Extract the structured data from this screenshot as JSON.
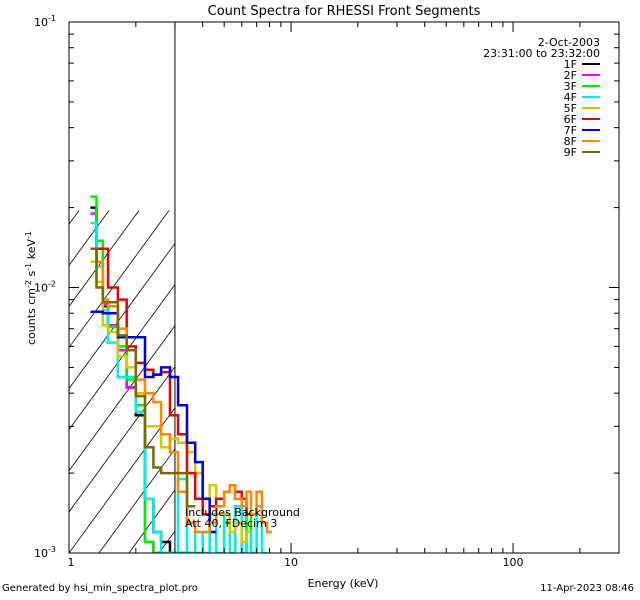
{
  "chart_data": {
    "type": "line",
    "title": "Count Spectra for RHESSI Front Segments",
    "xlabel": "Energy (keV)",
    "ylabel_parts": [
      "counts cm",
      "-2",
      " s",
      "-1",
      " keV",
      "-1"
    ],
    "xscale": "log",
    "yscale": "log",
    "xlim": [
      1,
      300
    ],
    "ylim": [
      0.001,
      0.1
    ],
    "x_ticks": [
      {
        "v": 10,
        "label": "10"
      },
      {
        "v": 100,
        "label": "100"
      }
    ],
    "x_tick_label_1": "1",
    "y_ticks": [
      {
        "v": 0.1,
        "base": "10",
        "exp": "-1"
      },
      {
        "v": 0.01,
        "base": "10",
        "exp": "-2"
      },
      {
        "v": 0.001,
        "base": "10",
        "exp": "-3"
      }
    ],
    "date": "2-Oct-2003",
    "time_range": "23:31:00 to 23:32:00",
    "annotation": [
      "Includes Background",
      "Att 40, FDecim 3"
    ],
    "shaded_region_keV": [
      1,
      3
    ],
    "series": [
      {
        "name": "1F",
        "color": "#000000",
        "edges": [
          1.25,
          1.33,
          1.42,
          1.5,
          1.66,
          1.82,
          2.0,
          2.2,
          2.4,
          2.6,
          2.85,
          3.1,
          3.4,
          3.7
        ],
        "values": [
          0.02,
          0.0125,
          0.0085,
          0.0072,
          0.0058,
          0.0042,
          0.0033,
          0.0016,
          0.0012,
          0.0011,
          0.001,
          0.001,
          0.001
        ]
      },
      {
        "name": "2F",
        "color": "#ff00ff",
        "edges": [
          1.25,
          1.33,
          1.42,
          1.5,
          1.66,
          1.82,
          2.0,
          2.2,
          2.4,
          2.6,
          2.85,
          3.1
        ],
        "values": [
          0.019,
          0.0125,
          0.0086,
          0.0072,
          0.0058,
          0.0042,
          0.0034,
          0.0011,
          0.001,
          0.001,
          0.001
        ]
      },
      {
        "name": "3F",
        "color": "#00ee00",
        "edges": [
          1.25,
          1.33,
          1.42,
          1.5,
          1.66,
          1.82,
          2.0,
          2.2,
          2.4,
          2.6,
          2.85,
          3.1,
          3.4,
          3.7,
          4.0,
          4.3,
          4.6,
          5.0,
          5.3,
          5.6,
          6.0,
          6.3,
          6.6,
          7.0
        ],
        "values": [
          0.022,
          0.015,
          0.0088,
          0.0071,
          0.006,
          0.0045,
          0.0036,
          0.0011,
          0.001,
          0.001,
          0.001,
          0.001,
          0.001,
          0.001,
          0.001,
          0.0012,
          0.001,
          0.0013,
          0.001,
          0.0015,
          0.001,
          0.0014,
          0.001
        ]
      },
      {
        "name": "4F",
        "color": "#00eeee",
        "edges": [
          1.25,
          1.33,
          1.42,
          1.5,
          1.66,
          1.82,
          2.0,
          2.2,
          2.4,
          2.6,
          2.85,
          3.1,
          3.4,
          3.7,
          4.0,
          4.3,
          4.6,
          5.0,
          5.3,
          5.6,
          6.0,
          6.3,
          6.6,
          7.0,
          7.4,
          7.8
        ],
        "values": [
          0.0175,
          0.012,
          0.0082,
          0.0062,
          0.0046,
          0.0046,
          0.0034,
          0.0016,
          0.0012,
          0.001,
          0.001,
          0.0019,
          0.001,
          0.0012,
          0.001,
          0.0014,
          0.001,
          0.0014,
          0.001,
          0.0015,
          0.001,
          0.0012,
          0.001,
          0.0015,
          0.001
        ]
      },
      {
        "name": "5F",
        "color": "#cccc00",
        "edges": [
          1.25,
          1.33,
          1.42,
          1.5,
          1.66,
          1.82,
          2.0,
          2.2,
          2.4,
          2.6,
          2.85,
          3.1,
          3.4,
          3.7,
          4.0,
          4.3,
          4.6,
          5.0,
          5.3,
          5.6,
          6.0,
          6.3,
          6.6
        ],
        "values": [
          0.0125,
          0.0105,
          0.0072,
          0.0068,
          0.0055,
          0.005,
          0.004,
          0.003,
          0.003,
          0.0025,
          0.0027,
          0.0026,
          0.0024,
          0.002,
          0.0016,
          0.0018,
          0.0014,
          0.0014,
          0.0012,
          0.0013,
          0.0011,
          0.0012
        ]
      },
      {
        "name": "6F",
        "color": "#ee0000",
        "edges": [
          1.25,
          1.33,
          1.42,
          1.5,
          1.66,
          1.82,
          2.0,
          2.2,
          2.4,
          2.6,
          2.85,
          3.1,
          3.4,
          3.7,
          4.0,
          4.3,
          4.6,
          5.0,
          5.3,
          5.6,
          6.0,
          6.3,
          6.6
        ],
        "values": [
          0.014,
          0.014,
          0.014,
          0.01,
          0.009,
          0.006,
          0.0052,
          0.0049,
          0.0047,
          0.0048,
          0.0033,
          0.0028,
          0.002,
          0.0016,
          0.0014,
          0.0015,
          0.0016,
          0.0017,
          0.0018,
          0.0017,
          0.0016,
          0.0014
        ]
      },
      {
        "name": "7F",
        "color": "#0000dd",
        "edges": [
          1.25,
          1.33,
          1.42,
          1.5,
          1.66,
          1.82,
          2.0,
          2.2,
          2.4,
          2.6,
          2.85,
          3.1,
          3.4,
          3.7,
          4.0,
          4.3,
          4.6
        ],
        "values": [
          0.0081,
          0.0081,
          0.008,
          0.008,
          0.0065,
          0.0065,
          0.0065,
          0.0046,
          0.0047,
          0.005,
          0.0046,
          0.0036,
          0.0026,
          0.0022,
          0.0016,
          0.0012
        ]
      },
      {
        "name": "8F",
        "color": "#ff8800",
        "edges": [
          1.25,
          1.33,
          1.42,
          1.5,
          1.66,
          1.82,
          2.0,
          2.2,
          2.4,
          2.6,
          2.85,
          3.1,
          3.4,
          3.7,
          4.0,
          4.3,
          4.6,
          5.0,
          5.3,
          5.6,
          6.0,
          6.3,
          6.6,
          7.0,
          7.4,
          7.8,
          8.2
        ],
        "values": [
          0.014,
          0.0125,
          0.009,
          0.0085,
          0.007,
          0.0058,
          0.0045,
          0.004,
          0.0037,
          0.0028,
          0.0024,
          0.0017,
          0.0013,
          0.0012,
          0.0012,
          0.0013,
          0.0015,
          0.0017,
          0.0018,
          0.0016,
          0.0015,
          0.0017,
          0.0014,
          0.0017,
          0.0013,
          0.0012
        ]
      },
      {
        "name": "9F",
        "color": "#7a6a00",
        "edges": [
          1.25,
          1.33,
          1.42,
          1.5,
          1.66,
          1.82,
          2.0,
          2.2,
          2.4,
          2.6,
          2.85,
          3.1,
          3.4,
          3.7
        ],
        "values": [
          0.014,
          0.01,
          0.0088,
          0.0088,
          0.0066,
          0.0058,
          0.0039,
          0.0025,
          0.0021,
          0.002,
          0.002,
          0.002,
          0.0015
        ]
      }
    ]
  },
  "footer": {
    "left": "Generated by hsi_min_spectra_plot.pro",
    "right": "11-Apr-2023 08:46"
  }
}
